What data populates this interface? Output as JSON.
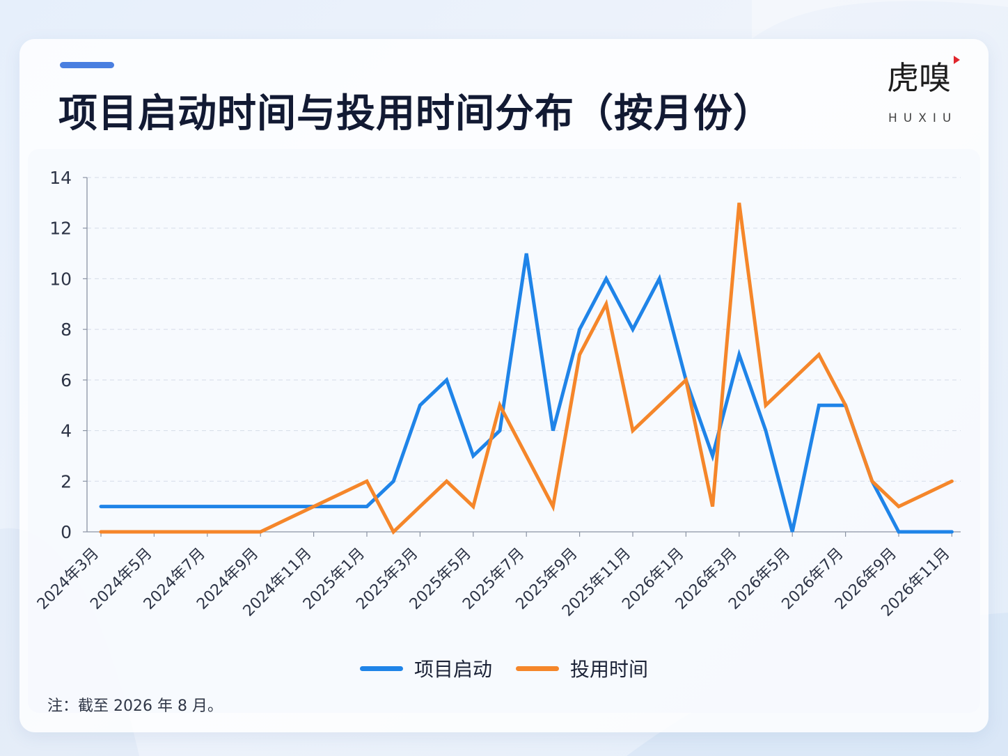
{
  "header": {
    "title": "项目启动时间与投用时间分布（按月份）",
    "accent_color": "#4a7fe0"
  },
  "logo": {
    "cn": "虎嗅",
    "en": "HUXIU",
    "mark_color": "#e0262c"
  },
  "footer": {
    "note": "注：截至 2026 年 8 月。"
  },
  "chart_data": {
    "type": "line",
    "title": "项目启动时间与投用时间分布（按月份）",
    "xlabel": "",
    "ylabel": "",
    "x": [
      "2024年3月",
      "2024年4月",
      "2024年5月",
      "2024年6月",
      "2024年7月",
      "2024年8月",
      "2024年9月",
      "2024年10月",
      "2024年11月",
      "2024年12月",
      "2025年1月",
      "2025年2月",
      "2025年3月",
      "2025年4月",
      "2025年5月",
      "2025年6月",
      "2025年7月",
      "2025年8月",
      "2025年9月",
      "2025年10月",
      "2025年11月",
      "2025年12月",
      "2026年1月",
      "2026年2月",
      "2026年3月",
      "2026年4月",
      "2026年5月",
      "2026年6月",
      "2026年7月",
      "2026年8月",
      "2026年9月",
      "2026年10月",
      "2026年11月"
    ],
    "tick_labels": [
      "2024年3月",
      "2024年5月",
      "2024年7月",
      "2024年9月",
      "2024年11月",
      "2025年1月",
      "2025年3月",
      "2025年5月",
      "2025年7月",
      "2025年9月",
      "2025年11月",
      "2026年1月",
      "2026年3月",
      "2026年5月",
      "2026年7月",
      "2026年9月",
      "2026年11月"
    ],
    "ylim": [
      0,
      14
    ],
    "yticks": [
      0,
      2,
      4,
      6,
      8,
      10,
      12,
      14
    ],
    "grid": true,
    "legend_position": "bottom-center",
    "series": [
      {
        "name": "项目启动",
        "color": "#1f84e8",
        "values": [
          1,
          1,
          1,
          1,
          1,
          1,
          1,
          1,
          1,
          1,
          1,
          2,
          5,
          6,
          3,
          4,
          11,
          4,
          8,
          10,
          8,
          10,
          6,
          3,
          7,
          4,
          0,
          5,
          5,
          2,
          0,
          0,
          0
        ]
      },
      {
        "name": "投用时间",
        "color": "#f5862a",
        "values": [
          0,
          0,
          0,
          0,
          0,
          0,
          0,
          0.5,
          1,
          1.5,
          2,
          0,
          1,
          2,
          1,
          5,
          3,
          1,
          7,
          9,
          4,
          5,
          6,
          1,
          13,
          5,
          6,
          7,
          5,
          2,
          1,
          1.5,
          2
        ]
      }
    ]
  }
}
